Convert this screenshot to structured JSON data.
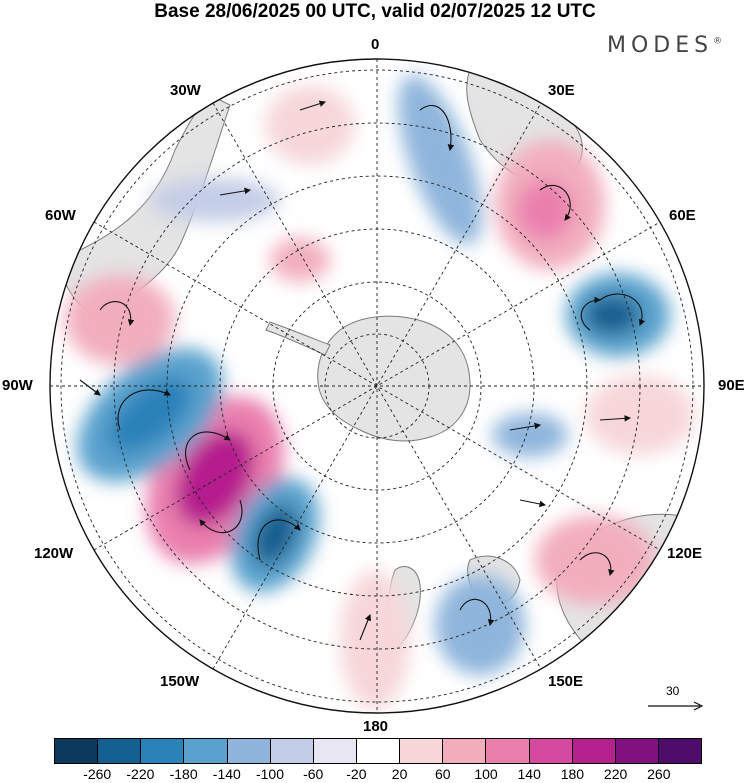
{
  "header": {
    "title": "Base 28/06/2025 00 UTC, valid 02/07/2025 12 UTC",
    "brand": "MODES",
    "brand_mark": "®"
  },
  "map": {
    "projection": "south-polar-stereographic",
    "longitude_labels": {
      "lon_0": "0",
      "lon_30e": "30E",
      "lon_60e": "60E",
      "lon_90e": "90E",
      "lon_120e": "120E",
      "lon_150e": "150E",
      "lon_180": "180",
      "lon_150w": "150W",
      "lon_120w": "120W",
      "lon_90w": "90W",
      "lon_60w": "60W",
      "lon_30w": "30W"
    },
    "reference_vector": {
      "label": "30"
    },
    "colors": {
      "land": "#e4e4e4",
      "coast": "#7a7a7a",
      "grid": "#222222",
      "arrow": "#111111"
    }
  },
  "colorbar": {
    "ticks": [
      "-260",
      "-220",
      "-180",
      "-140",
      "-100",
      "-60",
      "-20",
      "20",
      "60",
      "100",
      "140",
      "180",
      "220",
      "260"
    ],
    "colors": [
      "#0d3a5c",
      "#135f8f",
      "#2b82b9",
      "#5aa2cd",
      "#8fb5dc",
      "#c4cde7",
      "#e8e6f2",
      "#ffffff",
      "#f7d7d9",
      "#f2aebd",
      "#ea7fae",
      "#d54aa0",
      "#b51f8e",
      "#7f127f",
      "#4f0d6b"
    ]
  }
}
